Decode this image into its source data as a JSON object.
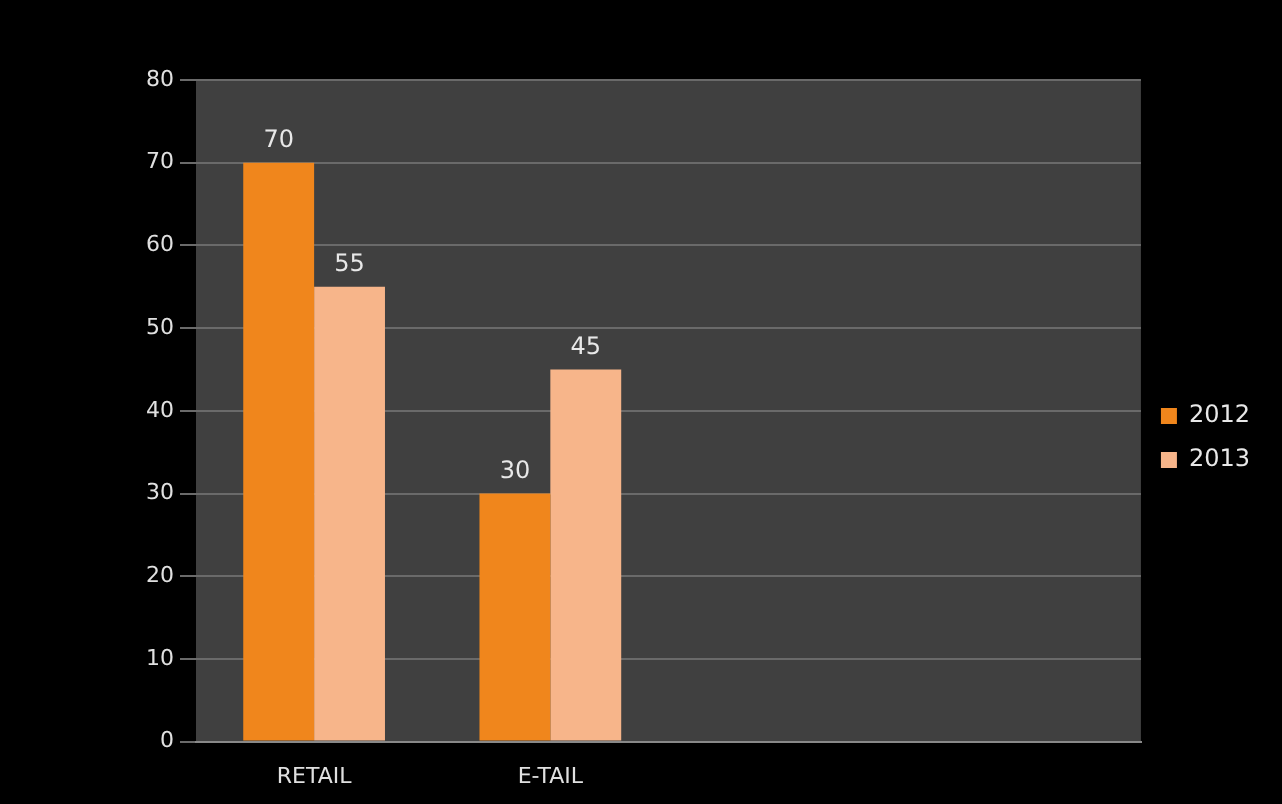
{
  "chart_data": {
    "type": "bar",
    "categories": [
      "RETAIL",
      "E-TAIL",
      null,
      null
    ],
    "series": [
      {
        "name": "2012",
        "color": "#f0861c",
        "values": [
          70,
          30,
          null,
          null
        ]
      },
      {
        "name": "2013",
        "color": "#f7b58a",
        "values": [
          55,
          45,
          null,
          null
        ]
      }
    ],
    "ylim": [
      0,
      80
    ],
    "yticks": [
      0,
      10,
      20,
      30,
      40,
      50,
      60,
      70,
      80
    ],
    "grid": "y",
    "legend": "right",
    "data_labels": true
  }
}
